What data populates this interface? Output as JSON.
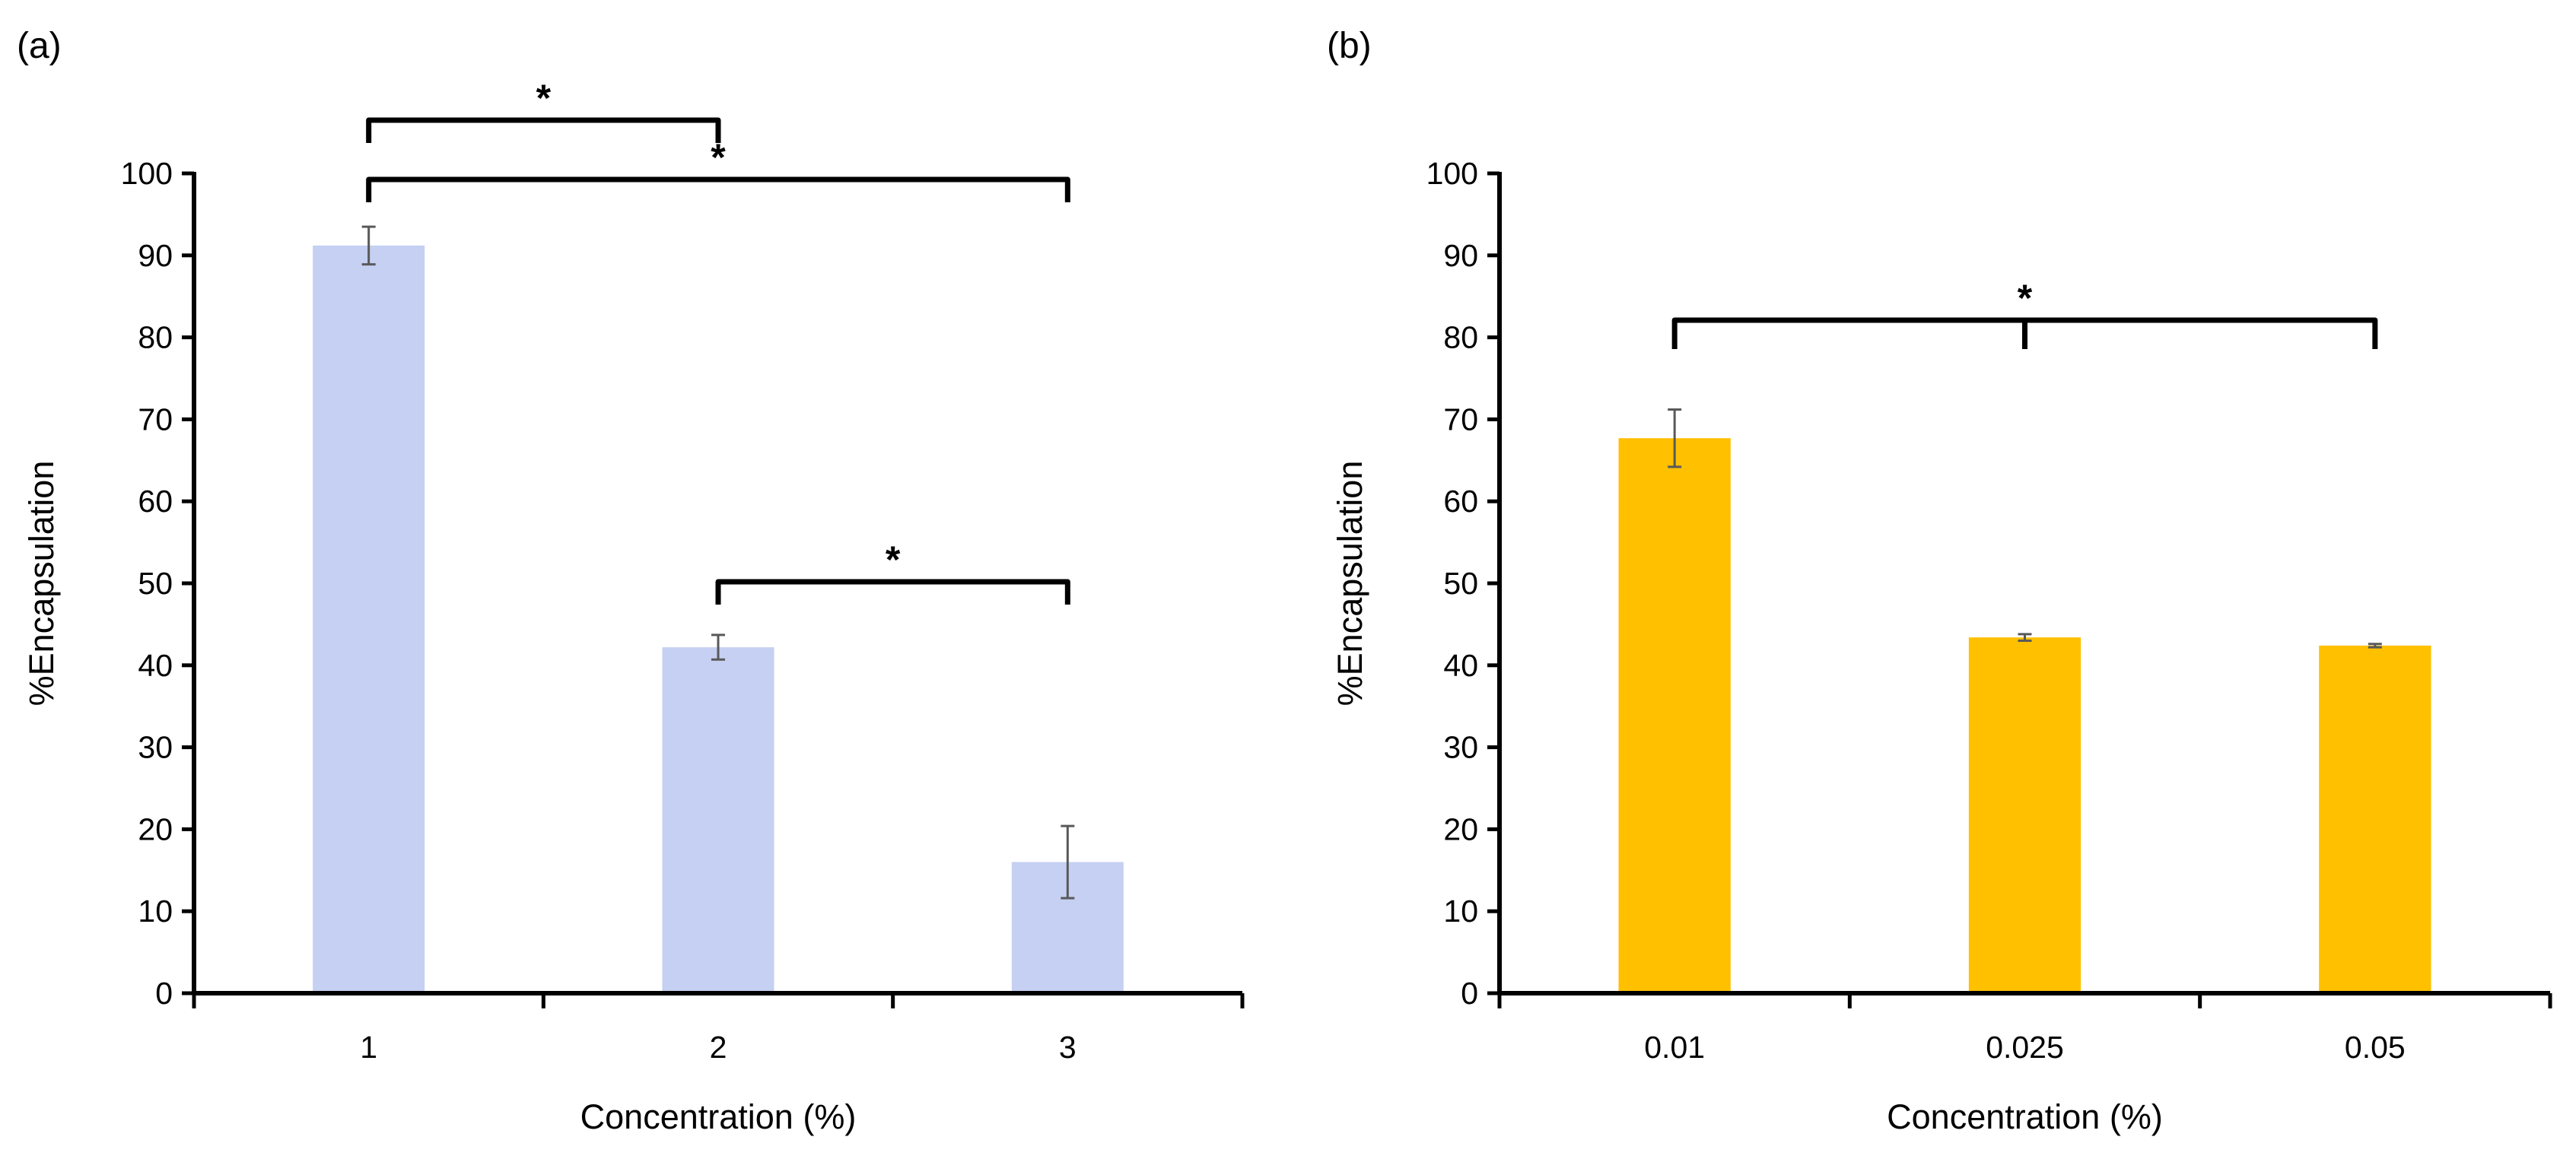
{
  "chart_data": [
    {
      "panel_label": "(a)",
      "type": "bar",
      "categories": [
        "1",
        "2",
        "3"
      ],
      "values": [
        91.2,
        42.2,
        16.0
      ],
      "errors": [
        2.3,
        1.5,
        4.4
      ],
      "bar_color": "#C5D0F2",
      "xlabel": "Concentration (%)",
      "ylabel": "%Encapsulation",
      "ylim": [
        0,
        100
      ],
      "yticks": [
        0,
        10,
        20,
        30,
        40,
        50,
        60,
        70,
        80,
        90,
        100
      ],
      "grid": false,
      "significance": [
        {
          "from": 0,
          "to": 1,
          "label": "*"
        },
        {
          "from": 0,
          "to": 2,
          "label": "*"
        },
        {
          "from": 1,
          "to": 2,
          "label": "*"
        }
      ]
    },
    {
      "panel_label": "(b)",
      "type": "bar",
      "categories": [
        "0.01",
        "0.025",
        "0.05"
      ],
      "values": [
        67.7,
        43.4,
        42.4
      ],
      "errors": [
        3.5,
        0.4,
        0.2
      ],
      "bar_color": "#FFC000",
      "xlabel": "Concentration (%)",
      "ylabel": "%Encapsulation",
      "ylim": [
        0,
        100
      ],
      "yticks": [
        0,
        10,
        20,
        30,
        40,
        50,
        60,
        70,
        80,
        90,
        100
      ],
      "grid": false,
      "significance": [
        {
          "from": 0,
          "to": 2,
          "mid_tick": 1,
          "label": "*"
        }
      ]
    }
  ]
}
